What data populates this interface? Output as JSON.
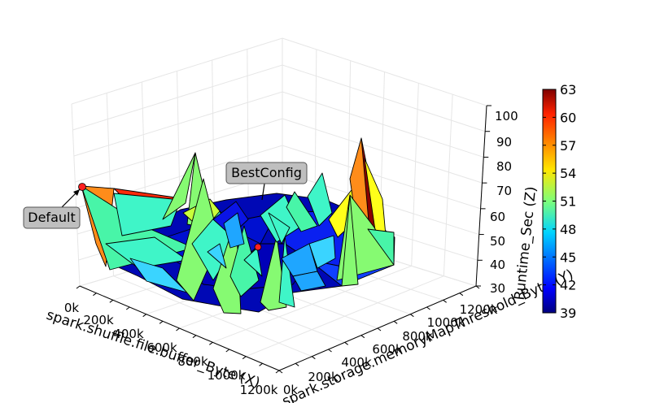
{
  "chart_data": {
    "type": "surface3d",
    "xlabel": "spark.shuffle.file.buffer_Byte (X)",
    "ylabel": "spark.storage.memoryMapThreshold_Byte (Y)",
    "zlabel": "Runtime_Sec (Z)",
    "x_ticks": [
      "0k",
      "200k",
      "400k",
      "600k",
      "800k",
      "1000k",
      "1200k"
    ],
    "y_ticks": [
      "0k",
      "200k",
      "400k",
      "600k",
      "800k",
      "1000k",
      "1200k"
    ],
    "z_ticks": [
      "30",
      "40",
      "50",
      "60",
      "70",
      "80",
      "90",
      "100"
    ],
    "zlim": [
      30,
      100
    ],
    "colorbar": {
      "min": 39,
      "max": 63,
      "ticks": [
        "39",
        "42",
        "45",
        "48",
        "51",
        "54",
        "57",
        "60",
        "63"
      ]
    },
    "annotations": [
      {
        "label": "Default",
        "x": 0,
        "y": 0,
        "z": 72
      },
      {
        "label": "BestConfig",
        "x": 650000,
        "y": 450000,
        "z": 39
      }
    ],
    "grid": true,
    "points": [
      {
        "x": 0,
        "y": 0,
        "z": 72
      },
      {
        "x": 650000,
        "y": 450000,
        "z": 39
      }
    ]
  }
}
